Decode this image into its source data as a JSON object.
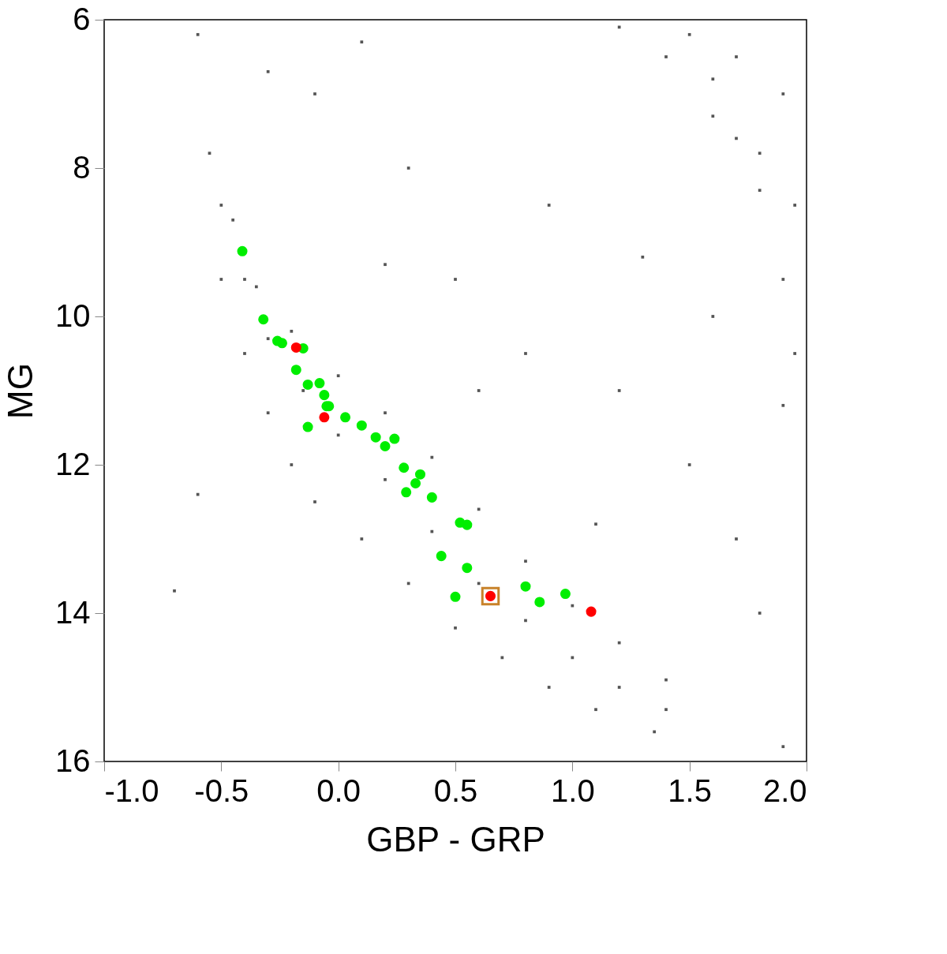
{
  "chart_data": {
    "type": "scatter",
    "xlabel": "GBP - GRP",
    "ylabel": "MG",
    "xlim": [
      -1.0,
      2.0
    ],
    "ylim": [
      16,
      6
    ],
    "xticks": [
      {
        "value": -1,
        "label": "-1.0"
      },
      {
        "value": -0.5,
        "label": "-0.5"
      },
      {
        "value": 0,
        "label": "0.0"
      },
      {
        "value": 0.5,
        "label": "0.5"
      },
      {
        "value": 1,
        "label": "1.0"
      },
      {
        "value": 1.5,
        "label": "1.5"
      },
      {
        "value": 2,
        "label": "2.0"
      }
    ],
    "yticks": [
      6,
      8,
      10,
      12,
      14,
      16
    ],
    "grid": false,
    "series": [
      {
        "color": "#555555",
        "marker": "square",
        "x": [
          -0.55,
          -0.45,
          -0.35,
          -0.2,
          0.0,
          0.2,
          0.4,
          0.6,
          0.8,
          1.0,
          1.2,
          1.4,
          -0.5,
          -0.4,
          -0.3,
          -0.15,
          0.0,
          0.2,
          0.4,
          0.6,
          0.8,
          1.0,
          1.2,
          1.4,
          -0.5,
          -0.4,
          -0.3,
          -0.2,
          -0.1,
          0.1,
          0.3,
          0.5,
          0.7,
          0.9,
          1.1,
          1.35,
          1.2,
          1.4,
          1.6,
          1.8,
          1.95,
          1.9,
          1.5,
          1.7,
          1.9,
          1.8,
          1.95,
          1.6,
          1.7,
          1.9,
          -0.1,
          0.3,
          0.5,
          0.8,
          1.2,
          1.5,
          1.7,
          0.1,
          0.9,
          1.3,
          1.6,
          1.8,
          1.9,
          -0.7,
          -0.6,
          1.1,
          0.6,
          0.2,
          -0.3,
          -0.6
        ],
        "values": [
          7.8,
          8.7,
          9.6,
          10.2,
          10.8,
          11.3,
          11.9,
          12.6,
          13.3,
          13.9,
          14.4,
          14.9,
          8.5,
          9.5,
          10.3,
          11.0,
          11.6,
          12.2,
          12.9,
          13.6,
          14.1,
          14.6,
          15.0,
          15.3,
          9.5,
          10.5,
          11.3,
          12.0,
          12.5,
          13.0,
          13.6,
          14.2,
          14.6,
          15.0,
          15.3,
          15.6,
          6.1,
          6.5,
          7.3,
          8.3,
          10.5,
          9.5,
          6.2,
          6.5,
          7.0,
          7.8,
          8.5,
          6.8,
          7.6,
          11.2,
          7.0,
          8.0,
          9.5,
          10.5,
          11.0,
          12.0,
          13.0,
          6.3,
          8.5,
          9.2,
          10.0,
          14.0,
          15.8,
          13.7,
          12.4,
          12.8,
          11.0,
          9.3,
          6.7,
          6.2
        ]
      },
      {
        "color": "#00ee00",
        "marker": "circle",
        "x": [
          -0.41,
          -0.32,
          -0.26,
          -0.24,
          -0.15,
          -0.18,
          -0.13,
          -0.08,
          -0.06,
          -0.05,
          -0.04,
          -0.13,
          0.03,
          0.1,
          0.16,
          0.2,
          0.24,
          0.28,
          0.35,
          0.33,
          0.29,
          0.4,
          0.52,
          0.55,
          0.44,
          0.55,
          0.5,
          0.8,
          0.86,
          0.97
        ],
        "values": [
          9.12,
          10.04,
          10.33,
          10.36,
          10.43,
          10.72,
          10.92,
          10.9,
          11.06,
          11.21,
          11.21,
          11.49,
          11.36,
          11.47,
          11.63,
          11.75,
          11.65,
          12.04,
          12.13,
          12.25,
          12.37,
          12.44,
          12.78,
          12.81,
          13.23,
          13.39,
          13.78,
          13.64,
          13.85,
          13.74
        ]
      },
      {
        "color": "#ff0000",
        "marker": "circle",
        "x": [
          -0.18,
          -0.06,
          0.65,
          1.08
        ],
        "values": [
          10.42,
          11.36,
          13.77,
          13.98
        ]
      },
      {
        "color": "#c8822a",
        "marker": "square_open",
        "x": [
          0.65
        ],
        "values": [
          13.77
        ]
      }
    ]
  }
}
